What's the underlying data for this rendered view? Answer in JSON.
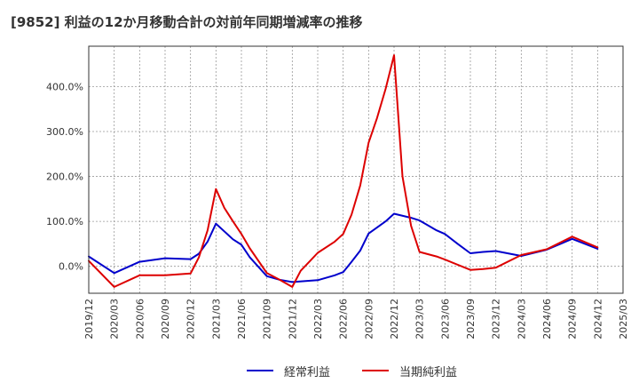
{
  "chart_data": {
    "type": "line",
    "title": "[9852]  利益の12か月移動合計の対前年同期増減率の推移",
    "xlabel": "",
    "ylabel": "",
    "ylim": [
      -60,
      490
    ],
    "y_ticks": [
      0,
      100,
      200,
      300,
      400
    ],
    "y_tick_labels": [
      "0.0%",
      "100.0%",
      "200.0%",
      "300.0%",
      "400.0%"
    ],
    "x_tick_labels": [
      "2019/12",
      "2020/03",
      "2020/06",
      "2020/09",
      "2020/12",
      "2021/03",
      "2021/06",
      "2021/09",
      "2021/12",
      "2022/03",
      "2022/06",
      "2022/09",
      "2022/12",
      "2023/03",
      "2023/06",
      "2023/09",
      "2023/12",
      "2024/03",
      "2024/06",
      "2024/09",
      "2024/12",
      "2025/03"
    ],
    "grid": true,
    "legend_position": "bottom",
    "series": [
      {
        "name": "経常利益",
        "color": "#0000cc",
        "points": [
          [
            0,
            22
          ],
          [
            1,
            -15
          ],
          [
            2,
            10
          ],
          [
            3,
            18
          ],
          [
            4,
            16
          ],
          [
            4.33,
            28
          ],
          [
            4.67,
            55
          ],
          [
            5,
            95
          ],
          [
            5.67,
            60
          ],
          [
            6,
            48
          ],
          [
            6.33,
            20
          ],
          [
            7,
            -22
          ],
          [
            7.5,
            -30
          ],
          [
            8,
            -35
          ],
          [
            9,
            -31
          ],
          [
            9.67,
            -20
          ],
          [
            10,
            -13
          ],
          [
            10.33,
            10
          ],
          [
            10.67,
            35
          ],
          [
            11,
            73
          ],
          [
            11.67,
            100
          ],
          [
            12,
            117
          ],
          [
            12.67,
            108
          ],
          [
            13,
            102
          ],
          [
            13.67,
            80
          ],
          [
            14,
            72
          ],
          [
            14.5,
            50
          ],
          [
            15,
            29
          ],
          [
            15.5,
            32
          ],
          [
            16,
            34
          ],
          [
            17,
            23
          ],
          [
            18,
            37
          ],
          [
            19,
            61
          ],
          [
            20,
            39
          ]
        ]
      },
      {
        "name": "当期純利益",
        "color": "#dd0000",
        "points": [
          [
            0,
            12
          ],
          [
            1,
            -46
          ],
          [
            2,
            -20
          ],
          [
            3,
            -20
          ],
          [
            4,
            -16
          ],
          [
            4.33,
            20
          ],
          [
            4.67,
            80
          ],
          [
            5,
            172
          ],
          [
            5.33,
            130
          ],
          [
            5.67,
            100
          ],
          [
            6,
            72
          ],
          [
            6.33,
            40
          ],
          [
            7,
            -15
          ],
          [
            7.5,
            -30
          ],
          [
            8,
            -46
          ],
          [
            8.33,
            -10
          ],
          [
            8.67,
            10
          ],
          [
            9,
            30
          ],
          [
            9.67,
            55
          ],
          [
            10,
            72
          ],
          [
            10.33,
            115
          ],
          [
            10.67,
            180
          ],
          [
            11,
            275
          ],
          [
            11.33,
            330
          ],
          [
            11.67,
            395
          ],
          [
            12,
            470
          ],
          [
            12.33,
            200
          ],
          [
            12.67,
            90
          ],
          [
            13,
            32
          ],
          [
            13.67,
            22
          ],
          [
            14,
            15
          ],
          [
            15,
            -8
          ],
          [
            15.5,
            -6
          ],
          [
            16,
            -3
          ],
          [
            17,
            25
          ],
          [
            18,
            38
          ],
          [
            19,
            66
          ],
          [
            20,
            42
          ]
        ]
      }
    ]
  }
}
